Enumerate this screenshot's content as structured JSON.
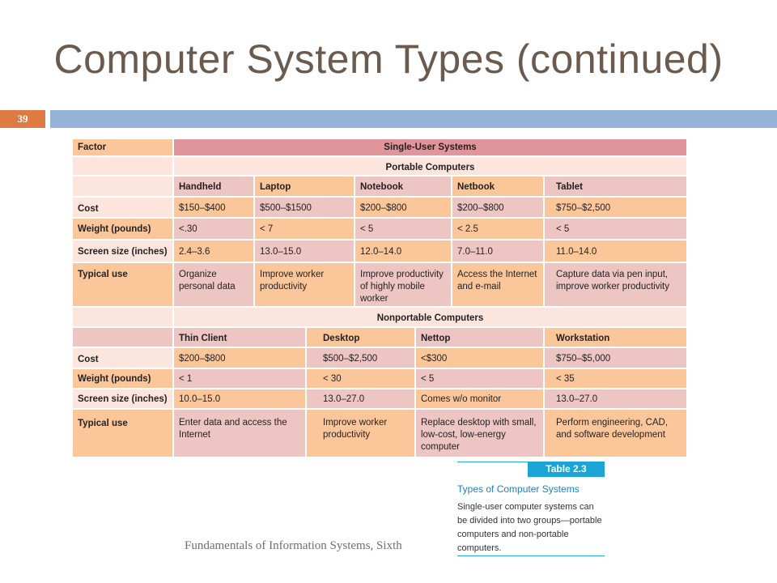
{
  "slide": {
    "title": "Computer System Types (continued)",
    "slide_number": "39",
    "footer": "Fundamentals of Information Systems, Sixth"
  },
  "table": {
    "factor_header": "Factor",
    "group_header": "Single-User Systems",
    "portable": {
      "header": "Portable Computers",
      "columns": [
        "Handheld",
        "Laptop",
        "Notebook",
        "Netbook",
        "Tablet"
      ],
      "rows": [
        {
          "label": "Cost",
          "cells": [
            "$150–$400",
            "$500–$1500",
            "$200–$800",
            "$200–$800",
            "$750–$2,500"
          ]
        },
        {
          "label": "Weight (pounds)",
          "cells": [
            "<.30",
            "< 7",
            "< 5",
            "< 2.5",
            "< 5"
          ]
        },
        {
          "label": "Screen size (inches)",
          "cells": [
            "2.4–3.6",
            "13.0–15.0",
            "12.0–14.0",
            "7.0–11.0",
            "11.0–14.0"
          ]
        },
        {
          "label": "Typical use",
          "cells": [
            "Organize personal data",
            "Improve worker productivity",
            "Improve productivity of highly mobile worker",
            "Access the Internet and e-mail",
            "Capture data via pen input, improve worker productivity"
          ]
        }
      ]
    },
    "nonportable": {
      "header": "Nonportable Computers",
      "columns": [
        "Thin Client",
        "Desktop",
        "Nettop",
        "Workstation"
      ],
      "rows": [
        {
          "label": "Cost",
          "cells": [
            "$200–$800",
            "$500–$2,500",
            "<$300",
            "$750–$5,000"
          ]
        },
        {
          "label": "Weight (pounds)",
          "cells": [
            "< 1",
            "< 30",
            "< 5",
            "< 35"
          ]
        },
        {
          "label": "Screen size (inches)",
          "cells": [
            "10.0–15.0",
            "13.0–27.0",
            "Comes w/o monitor",
            "13.0–27.0"
          ]
        },
        {
          "label": "Typical use",
          "cells": [
            "Enter data and access the Internet",
            "Improve worker productivity",
            "Replace desktop with small, low-cost, low-energy computer",
            "Perform engineering, CAD, and software development"
          ]
        }
      ]
    }
  },
  "caption": {
    "tag": "Table 2.3",
    "title": "Types of Computer Systems",
    "body": "Single-user computer systems can be divided into two groups—portable computers and non-portable computers."
  }
}
